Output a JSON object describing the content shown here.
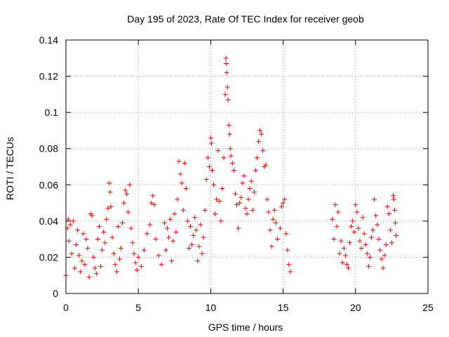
{
  "chart_data": {
    "type": "scatter",
    "title": "Day 195 of 2023, Rate Of TEC Index for receiver geob",
    "xlabel": "GPS time / hours",
    "ylabel": "ROTI / TECUs",
    "xlim": [
      0,
      25
    ],
    "ylim": [
      0,
      0.14
    ],
    "x_ticks": [
      "0",
      "5",
      "10",
      "15",
      "20",
      "25"
    ],
    "y_ticks": [
      "0",
      "0.02",
      "0.04",
      "0.06",
      "0.08",
      "0.1",
      "0.12",
      "0.14"
    ],
    "grid": true,
    "marker": "+",
    "color": "#ff0000",
    "series": [
      {
        "points": [
          [
            0.0,
            0.01
          ],
          [
            0.1,
            0.036
          ],
          [
            0.15,
            0.041
          ],
          [
            0.2,
            0.029
          ],
          [
            0.3,
            0.038
          ],
          [
            0.4,
            0.022
          ],
          [
            0.5,
            0.04
          ],
          [
            0.6,
            0.014
          ],
          [
            0.7,
            0.027
          ],
          [
            0.8,
            0.035
          ],
          [
            0.9,
            0.021
          ],
          [
            1.0,
            0.012
          ],
          [
            1.1,
            0.018
          ],
          [
            1.2,
            0.033
          ],
          [
            1.3,
            0.016
          ],
          [
            1.4,
            0.03
          ],
          [
            1.5,
            0.025
          ],
          [
            1.6,
            0.009
          ],
          [
            1.7,
            0.044
          ],
          [
            1.8,
            0.043
          ],
          [
            1.9,
            0.02
          ],
          [
            2.0,
            0.014
          ],
          [
            2.1,
            0.011
          ],
          [
            2.2,
            0.03
          ],
          [
            2.3,
            0.037
          ],
          [
            2.4,
            0.015
          ],
          [
            2.5,
            0.024
          ],
          [
            2.6,
            0.034
          ],
          [
            2.7,
            0.028
          ],
          [
            2.8,
            0.041
          ],
          [
            2.9,
            0.047
          ],
          [
            3.0,
            0.061
          ],
          [
            3.05,
            0.056
          ],
          [
            3.1,
            0.048
          ],
          [
            3.2,
            0.031
          ],
          [
            3.3,
            0.022
          ],
          [
            3.4,
            0.016
          ],
          [
            3.5,
            0.012
          ],
          [
            3.6,
            0.037
          ],
          [
            3.7,
            0.019
          ],
          [
            3.8,
            0.025
          ],
          [
            3.9,
            0.039
          ],
          [
            4.0,
            0.05
          ],
          [
            4.1,
            0.057
          ],
          [
            4.2,
            0.055
          ],
          [
            4.3,
            0.045
          ],
          [
            4.4,
            0.06
          ],
          [
            4.5,
            0.036
          ],
          [
            4.6,
            0.028
          ],
          [
            4.7,
            0.022
          ],
          [
            4.8,
            0.017
          ],
          [
            4.9,
            0.013
          ],
          [
            5.0,
            0.02
          ],
          [
            5.2,
            0.015
          ],
          [
            5.4,
            0.024
          ],
          [
            5.6,
            0.033
          ],
          [
            5.8,
            0.038
          ],
          [
            5.9,
            0.05
          ],
          [
            6.0,
            0.054
          ],
          [
            6.1,
            0.049
          ],
          [
            6.2,
            0.03
          ],
          [
            6.4,
            0.021
          ],
          [
            6.6,
            0.016
          ],
          [
            6.8,
            0.039
          ],
          [
            6.9,
            0.024
          ],
          [
            7.0,
            0.036
          ],
          [
            7.1,
            0.031
          ],
          [
            7.2,
            0.041
          ],
          [
            7.3,
            0.018
          ],
          [
            7.4,
            0.029
          ],
          [
            7.5,
            0.044
          ],
          [
            7.6,
            0.034
          ],
          [
            7.7,
            0.052
          ],
          [
            7.8,
            0.073
          ],
          [
            7.9,
            0.066
          ],
          [
            8.0,
            0.061
          ],
          [
            8.1,
            0.046
          ],
          [
            8.2,
            0.072
          ],
          [
            8.3,
            0.058
          ],
          [
            8.4,
            0.04
          ],
          [
            8.5,
            0.025
          ],
          [
            8.6,
            0.037
          ],
          [
            8.7,
            0.027
          ],
          [
            8.8,
            0.032
          ],
          [
            8.9,
            0.042
          ],
          [
            9.0,
            0.035
          ],
          [
            9.1,
            0.018
          ],
          [
            9.2,
            0.026
          ],
          [
            9.3,
            0.038
          ],
          [
            9.4,
            0.022
          ],
          [
            9.5,
            0.031
          ],
          [
            9.6,
            0.046
          ],
          [
            9.7,
            0.063
          ],
          [
            9.8,
            0.075
          ],
          [
            9.9,
            0.07
          ],
          [
            10.0,
            0.086
          ],
          [
            10.05,
            0.083
          ],
          [
            10.1,
            0.068
          ],
          [
            10.2,
            0.06
          ],
          [
            10.3,
            0.044
          ],
          [
            10.4,
            0.052
          ],
          [
            10.5,
            0.079
          ],
          [
            10.6,
            0.051
          ],
          [
            10.7,
            0.04
          ],
          [
            10.8,
            0.058
          ],
          [
            10.9,
            0.075
          ],
          [
            11.0,
            0.11
          ],
          [
            11.05,
            0.13
          ],
          [
            11.08,
            0.127
          ],
          [
            11.1,
            0.122
          ],
          [
            11.15,
            0.114
          ],
          [
            11.2,
            0.107
          ],
          [
            11.25,
            0.093
          ],
          [
            11.3,
            0.088
          ],
          [
            11.35,
            0.08
          ],
          [
            11.4,
            0.076
          ],
          [
            11.5,
            0.072
          ],
          [
            11.6,
            0.068
          ],
          [
            11.7,
            0.055
          ],
          [
            11.8,
            0.049
          ],
          [
            11.9,
            0.036
          ],
          [
            12.0,
            0.05
          ],
          [
            12.1,
            0.053
          ],
          [
            12.2,
            0.061
          ],
          [
            12.3,
            0.065
          ],
          [
            12.4,
            0.047
          ],
          [
            12.5,
            0.044
          ],
          [
            12.6,
            0.052
          ],
          [
            12.7,
            0.058
          ],
          [
            12.8,
            0.062
          ],
          [
            12.9,
            0.046
          ],
          [
            13.0,
            0.056
          ],
          [
            13.1,
            0.068
          ],
          [
            13.2,
            0.075
          ],
          [
            13.3,
            0.084
          ],
          [
            13.4,
            0.09
          ],
          [
            13.5,
            0.088
          ],
          [
            13.6,
            0.079
          ],
          [
            13.7,
            0.07
          ],
          [
            13.8,
            0.071
          ],
          [
            13.9,
            0.052
          ],
          [
            14.0,
            0.045
          ],
          [
            14.1,
            0.035
          ],
          [
            14.2,
            0.026
          ],
          [
            14.3,
            0.041
          ],
          [
            14.4,
            0.046
          ],
          [
            14.5,
            0.039
          ],
          [
            14.6,
            0.03
          ],
          [
            14.8,
            0.036
          ],
          [
            14.9,
            0.048
          ],
          [
            15.0,
            0.05
          ],
          [
            15.1,
            0.052
          ],
          [
            15.2,
            0.033
          ],
          [
            15.3,
            0.024
          ],
          [
            15.4,
            0.016
          ],
          [
            15.5,
            0.012
          ],
          [
            18.4,
            0.041
          ],
          [
            18.5,
            0.03
          ],
          [
            18.6,
            0.049
          ],
          [
            18.7,
            0.037
          ],
          [
            18.8,
            0.045
          ],
          [
            18.9,
            0.022
          ],
          [
            19.0,
            0.029
          ],
          [
            19.1,
            0.017
          ],
          [
            19.2,
            0.025
          ],
          [
            19.3,
            0.021
          ],
          [
            19.4,
            0.016
          ],
          [
            19.5,
            0.014
          ],
          [
            19.6,
            0.028
          ],
          [
            19.7,
            0.037
          ],
          [
            19.8,
            0.04
          ],
          [
            19.9,
            0.034
          ],
          [
            20.0,
            0.049
          ],
          [
            20.1,
            0.045
          ],
          [
            20.2,
            0.036
          ],
          [
            20.3,
            0.029
          ],
          [
            20.4,
            0.025
          ],
          [
            20.5,
            0.042
          ],
          [
            20.6,
            0.033
          ],
          [
            20.7,
            0.027
          ],
          [
            20.8,
            0.022
          ],
          [
            20.9,
            0.015
          ],
          [
            21.0,
            0.02
          ],
          [
            21.1,
            0.031
          ],
          [
            21.2,
            0.035
          ],
          [
            21.3,
            0.052
          ],
          [
            21.4,
            0.043
          ],
          [
            21.5,
            0.038
          ],
          [
            21.6,
            0.03
          ],
          [
            21.7,
            0.024
          ],
          [
            21.8,
            0.019
          ],
          [
            21.9,
            0.014
          ],
          [
            22.0,
            0.021
          ],
          [
            22.1,
            0.027
          ],
          [
            22.2,
            0.048
          ],
          [
            22.3,
            0.044
          ],
          [
            22.4,
            0.035
          ],
          [
            22.5,
            0.028
          ],
          [
            22.6,
            0.054
          ],
          [
            22.65,
            0.052
          ],
          [
            22.7,
            0.046
          ],
          [
            22.75,
            0.039
          ],
          [
            22.8,
            0.032
          ]
        ]
      }
    ]
  }
}
